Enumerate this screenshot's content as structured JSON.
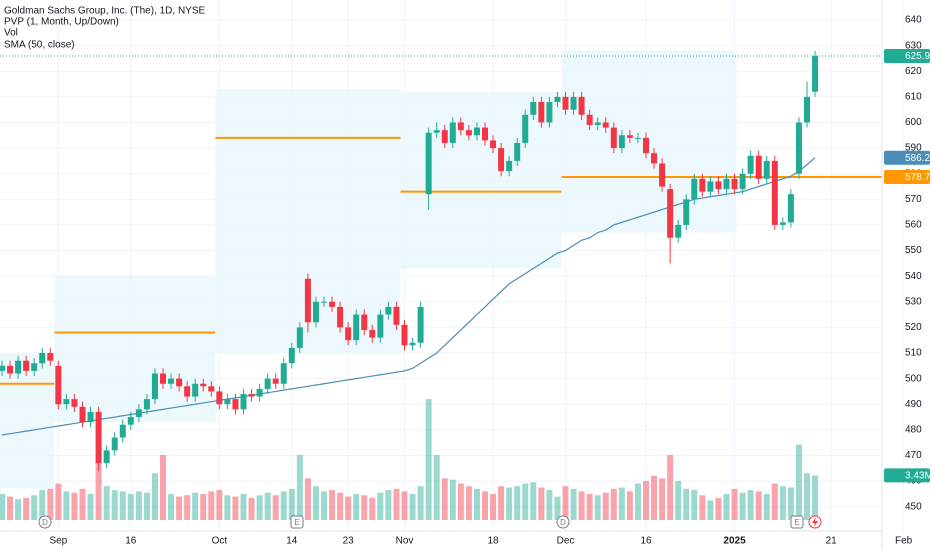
{
  "chart_data": {
    "type": "candlestick",
    "title": "Goldman Sachs Group, Inc. (The), 1D, NYSE",
    "indicators": [
      "PVP (1, Month, Up/Down)",
      "Vol",
      "SMA (50, close)"
    ],
    "x": [
      "2024-08-22",
      "2024-08-23",
      "2024-08-26",
      "2024-08-27",
      "2024-08-28",
      "2024-08-29",
      "2024-08-30",
      "2024-09-03",
      "2024-09-04",
      "2024-09-05",
      "2024-09-06",
      "2024-09-09",
      "2024-09-10",
      "2024-09-11",
      "2024-09-12",
      "2024-09-13",
      "2024-09-16",
      "2024-09-17",
      "2024-09-18",
      "2024-09-19",
      "2024-09-20",
      "2024-09-23",
      "2024-09-24",
      "2024-09-25",
      "2024-09-26",
      "2024-09-27",
      "2024-09-30",
      "2024-10-01",
      "2024-10-02",
      "2024-10-03",
      "2024-10-04",
      "2024-10-07",
      "2024-10-08",
      "2024-10-09",
      "2024-10-10",
      "2024-10-11",
      "2024-10-14",
      "2024-10-15",
      "2024-10-16",
      "2024-10-17",
      "2024-10-18",
      "2024-10-21",
      "2024-10-22",
      "2024-10-23",
      "2024-10-24",
      "2024-10-25",
      "2024-10-28",
      "2024-10-29",
      "2024-10-30",
      "2024-10-31",
      "2024-11-01",
      "2024-11-04",
      "2024-11-05",
      "2024-11-06",
      "2024-11-07",
      "2024-11-08",
      "2024-11-11",
      "2024-11-12",
      "2024-11-13",
      "2024-11-14",
      "2024-11-15",
      "2024-11-18",
      "2024-11-19",
      "2024-11-20",
      "2024-11-21",
      "2024-11-22",
      "2024-11-25",
      "2024-11-26",
      "2024-11-27",
      "2024-11-29",
      "2024-12-02",
      "2024-12-03",
      "2024-12-04",
      "2024-12-05",
      "2024-12-06",
      "2024-12-09",
      "2024-12-10",
      "2024-12-11",
      "2024-12-12",
      "2024-12-13",
      "2024-12-16",
      "2024-12-17",
      "2024-12-18",
      "2024-12-19",
      "2024-12-20",
      "2024-12-23",
      "2024-12-24",
      "2024-12-26",
      "2024-12-27",
      "2024-12-30",
      "2024-12-31",
      "2025-01-02",
      "2025-01-03",
      "2025-01-06",
      "2025-01-07",
      "2025-01-08",
      "2025-01-10",
      "2025-01-13",
      "2025-01-14",
      "2025-01-15",
      "2025-01-16",
      "2025-01-17"
    ],
    "open": [
      503,
      505,
      502,
      507,
      503,
      506,
      510,
      505,
      490,
      492,
      489,
      483,
      487,
      467,
      472,
      477,
      482,
      485,
      488,
      492,
      502,
      498,
      500,
      497,
      493,
      498,
      497,
      495,
      490,
      492,
      488,
      494,
      493,
      496,
      500,
      498,
      506,
      512,
      539,
      522,
      530,
      530,
      528,
      520,
      515,
      525,
      519,
      516,
      525,
      528,
      521,
      513,
      514,
      572,
      596,
      597,
      592,
      600,
      597,
      595,
      598,
      593,
      590,
      581,
      585,
      592,
      603,
      608,
      600,
      608,
      610,
      605,
      610,
      603,
      599,
      600,
      598,
      590,
      595,
      594,
      594,
      588,
      584,
      574,
      555,
      560,
      570,
      578,
      573,
      577,
      574,
      578,
      574,
      580,
      587,
      578,
      585,
      560,
      561,
      580,
      600,
      612
    ],
    "high": [
      507,
      507,
      509,
      509,
      508,
      512,
      512,
      507,
      494,
      494,
      491,
      489,
      489,
      474,
      479,
      484,
      487,
      490,
      494,
      504,
      504,
      502,
      502,
      499,
      500,
      500,
      499,
      497,
      494,
      494,
      496,
      496,
      498,
      502,
      502,
      508,
      514,
      522,
      541,
      532,
      532,
      532,
      530,
      522,
      527,
      527,
      521,
      527,
      530,
      530,
      523,
      516,
      530,
      598,
      600,
      599,
      602,
      602,
      599,
      600,
      600,
      595,
      592,
      587,
      594,
      605,
      610,
      610,
      610,
      612,
      612,
      612,
      612,
      605,
      602,
      602,
      600,
      597,
      597,
      596,
      596,
      590,
      586,
      576,
      562,
      572,
      580,
      580,
      579,
      579,
      580,
      580,
      582,
      589,
      589,
      587,
      587,
      563,
      574,
      602,
      616,
      628
    ],
    "low": [
      501,
      500,
      500,
      501,
      501,
      504,
      505,
      488,
      488,
      487,
      481,
      481,
      464,
      465,
      470,
      475,
      480,
      483,
      486,
      490,
      496,
      496,
      495,
      491,
      491,
      495,
      493,
      488,
      488,
      486,
      486,
      491,
      491,
      494,
      496,
      496,
      504,
      510,
      518,
      520,
      528,
      526,
      518,
      513,
      513,
      517,
      514,
      514,
      523,
      519,
      511,
      511,
      512,
      566,
      594,
      590,
      590,
      595,
      593,
      593,
      591,
      588,
      579,
      579,
      583,
      590,
      601,
      598,
      598,
      606,
      603,
      603,
      601,
      597,
      597,
      596,
      588,
      588,
      592,
      592,
      586,
      582,
      573,
      545,
      553,
      558,
      568,
      571,
      571,
      572,
      572,
      572,
      572,
      578,
      576,
      576,
      558,
      558,
      559,
      578,
      598,
      610
    ],
    "close": [
      505,
      502,
      507,
      503,
      506,
      510,
      507,
      490,
      492,
      489,
      483,
      487,
      467,
      472,
      477,
      482,
      485,
      488,
      492,
      502,
      498,
      500,
      497,
      493,
      498,
      497,
      495,
      490,
      492,
      488,
      494,
      493,
      496,
      500,
      498,
      506,
      512,
      520,
      522,
      530,
      530,
      528,
      520,
      515,
      525,
      519,
      516,
      525,
      528,
      521,
      513,
      514,
      528,
      596,
      597,
      592,
      600,
      597,
      595,
      598,
      593,
      590,
      581,
      585,
      592,
      603,
      608,
      600,
      608,
      610,
      605,
      610,
      603,
      599,
      600,
      598,
      590,
      595,
      594,
      594,
      588,
      584,
      575,
      555,
      560,
      570,
      578,
      573,
      577,
      574,
      578,
      574,
      580,
      587,
      578,
      585,
      560,
      561,
      572,
      600,
      610,
      625.94
    ],
    "volume": [
      2.0,
      1.8,
      1.6,
      1.7,
      1.9,
      2.3,
      2.4,
      2.8,
      2.2,
      2.1,
      2.4,
      2.0,
      4.5,
      2.6,
      2.3,
      2.2,
      2.0,
      2.2,
      2.1,
      3.6,
      5.0,
      2.0,
      1.8,
      1.9,
      2.1,
      2.0,
      2.2,
      2.3,
      1.9,
      1.8,
      2.0,
      1.7,
      1.9,
      2.1,
      1.9,
      2.2,
      2.4,
      5.0,
      3.2,
      2.6,
      2.2,
      2.3,
      2.1,
      1.8,
      2.0,
      1.9,
      1.7,
      2.1,
      2.3,
      2.4,
      2.2,
      2.0,
      2.6,
      9.3,
      5.0,
      3.2,
      3.1,
      2.8,
      2.6,
      2.4,
      2.2,
      2.0,
      2.6,
      2.5,
      2.6,
      2.8,
      2.9,
      2.5,
      2.3,
      1.8,
      2.6,
      2.4,
      2.2,
      2.0,
      1.9,
      2.1,
      2.4,
      2.5,
      2.2,
      2.8,
      3.0,
      3.4,
      3.2,
      5.0,
      3.0,
      2.4,
      2.3,
      1.9,
      1.5,
      1.7,
      2.0,
      2.4,
      2.1,
      2.3,
      2.2,
      2.0,
      2.8,
      2.6,
      2.5,
      5.8,
      3.6,
      3.43
    ],
    "volume_last_label": "3.43M",
    "sma": [
      478,
      478.5,
      479,
      479.5,
      480,
      480.5,
      481,
      481.5,
      482,
      482.5,
      483,
      483.5,
      484,
      484.5,
      485,
      485.5,
      486,
      486.5,
      487,
      487.5,
      488,
      488.5,
      489,
      489.5,
      490,
      490.5,
      491,
      491.5,
      492,
      492.5,
      493,
      493.5,
      494,
      494.5,
      495,
      495.5,
      496,
      496.5,
      497,
      497.5,
      498,
      498.5,
      499,
      499.5,
      500,
      500.5,
      501,
      501.5,
      502,
      502.5,
      503,
      504,
      506,
      508,
      510,
      513,
      516,
      519,
      522,
      525,
      528,
      531,
      534,
      537,
      539,
      541,
      543,
      545,
      547,
      549,
      550,
      552,
      554,
      555,
      557,
      558,
      560,
      561,
      562,
      563,
      564,
      565,
      566,
      567,
      568,
      569,
      570,
      570.5,
      571,
      571.5,
      572,
      572.5,
      573,
      574,
      575,
      576,
      577,
      578,
      579,
      581,
      583.5,
      586.25
    ],
    "pvp": [
      {
        "poc": 498,
        "va_high": 510,
        "va_low": 457
      },
      {
        "poc": 518,
        "va_high": 540,
        "va_low": 483
      },
      {
        "poc": 594,
        "va_high": 613,
        "va_low": 510
      },
      {
        "poc": 573,
        "va_high": 612,
        "va_low": 543
      },
      {
        "poc": 578.71,
        "va_high": 628,
        "va_low": 557
      }
    ],
    "colors": {
      "up": "#22ab94",
      "down": "#f23645",
      "sma": "#4a8db7",
      "poc": "#ff9800",
      "value_area": "#e8f6fb"
    },
    "ylim": [
      445,
      645
    ],
    "yticks": [
      450,
      460,
      470,
      480,
      490,
      500,
      510,
      520,
      530,
      540,
      550,
      560,
      570,
      580,
      590,
      600,
      610,
      620,
      630,
      640
    ],
    "xticks": [
      {
        "value": "2024-09-03",
        "label": "Sep"
      },
      {
        "value": "2024-09-16",
        "label": "16"
      },
      {
        "value": "2024-10-01",
        "label": "Oct"
      },
      {
        "value": "2024-10-14",
        "label": "14"
      },
      {
        "value": "2024-10-23",
        "label": "23"
      },
      {
        "value": "2024-11-01",
        "label": "Nov"
      },
      {
        "value": "2024-11-18",
        "label": "18"
      },
      {
        "value": "2024-12-02",
        "label": "Dec"
      },
      {
        "value": "2024-12-16",
        "label": "16"
      },
      {
        "value": "2025-01-02",
        "label": "2025"
      },
      {
        "value": "2025-01-21",
        "label": "21"
      },
      {
        "value": "2025-02-03",
        "label": "Feb"
      }
    ]
  }
}
